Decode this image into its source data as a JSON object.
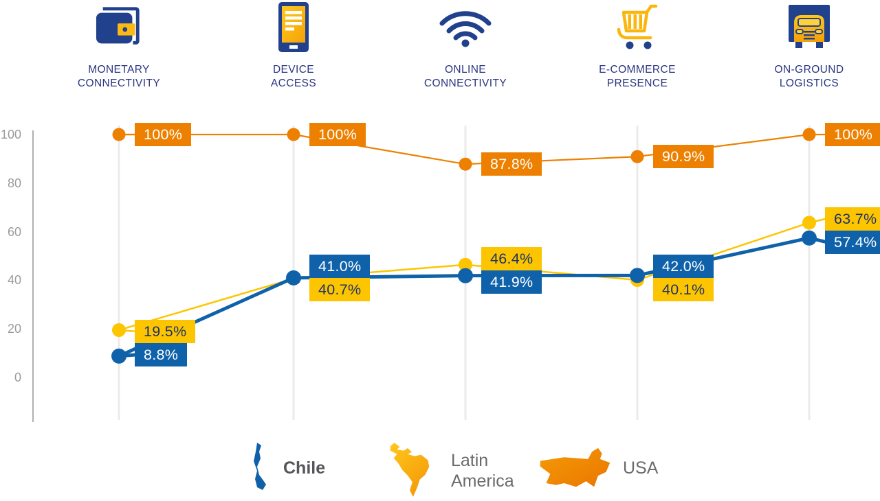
{
  "header": {
    "categories": [
      {
        "line1": "MONETARY",
        "line2": "CONNECTIVITY",
        "icon": "wallet-icon"
      },
      {
        "line1": "DEVICE",
        "line2": "ACCESS",
        "icon": "tablet-icon"
      },
      {
        "line1": "ONLINE",
        "line2": "CONNECTIVITY",
        "icon": "wifi-icon"
      },
      {
        "line1": "E-COMMERCE",
        "line2": "PRESENCE",
        "icon": "cart-icon"
      },
      {
        "line1": "ON-GROUND",
        "line2": "LOGISTICS",
        "icon": "truck-icon"
      }
    ]
  },
  "chart_data": {
    "type": "line",
    "categories": [
      "MONETARY CONNECTIVITY",
      "DEVICE ACCESS",
      "ONLINE CONNECTIVITY",
      "E-COMMERCE PRESENCE",
      "ON-GROUND LOGISTICS"
    ],
    "series": [
      {
        "name": "USA",
        "color": "#ED8000",
        "label_bg": "#ED8000",
        "label_text_color": "#FFFFFF",
        "line_width": 2.2,
        "point_radius": 9.5,
        "values": [
          100,
          100,
          87.8,
          90.9,
          100
        ],
        "labels": [
          "100%",
          "100%",
          "87.8%",
          "90.9%",
          "100%"
        ]
      },
      {
        "name": "Latin America",
        "color": "#FDC500",
        "label_bg": "#FDC500",
        "label_text_color": "#1F3269",
        "line_width": 2.5,
        "point_radius": 10,
        "values": [
          19.5,
          40.7,
          46.4,
          40.1,
          63.7
        ],
        "labels": [
          "19.5%",
          "40.7%",
          "46.4%",
          "40.1%",
          "63.7%"
        ]
      },
      {
        "name": "Chile",
        "color": "#0F62A9",
        "label_bg": "#0F62A9",
        "label_text_color": "#FFFFFF",
        "line_width": 5,
        "point_radius": 11,
        "values": [
          8.8,
          41.0,
          41.9,
          42.0,
          57.4
        ],
        "labels": [
          "8.8%",
          "41.0%",
          "41.9%",
          "42.0%",
          "57.4%"
        ]
      }
    ],
    "y_axis": {
      "min": 0,
      "max": 100,
      "ticks": [
        0,
        20,
        40,
        60,
        80,
        100
      ]
    },
    "grid": "vertical-only",
    "legend_position": "bottom"
  },
  "legend": {
    "items": [
      {
        "label": "Chile",
        "icon": "chile-map-icon",
        "color": "#0F62A9",
        "bold": true
      },
      {
        "label": "Latin America",
        "icon": "latin-america-map-icon",
        "color": "#FDC500",
        "bold": false
      },
      {
        "label": "USA",
        "icon": "usa-map-icon",
        "color": "#ED8000",
        "bold": false
      }
    ]
  },
  "colors": {
    "navy": "#21418D",
    "category_text": "#2A3480",
    "axis_gray": "#9C9C9C",
    "grid_gray": "#EBEBEB",
    "tick_text": "#9B9B9B",
    "yellow": "#FDC500",
    "orange": "#ED8000",
    "blue": "#0F62A9"
  }
}
